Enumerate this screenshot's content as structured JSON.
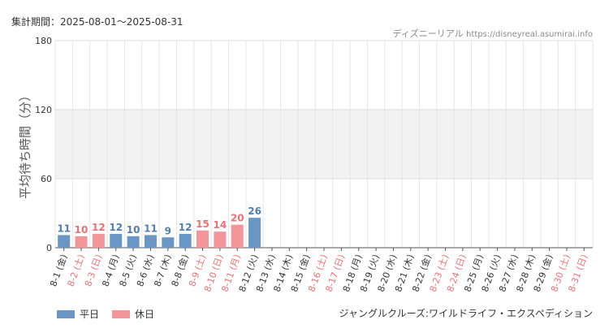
{
  "header": {
    "period": "集計期間：2025-08-01〜2025-08-31",
    "source_name": "ディズニーリアル",
    "source_url": "https://disneyreal.asumirai.info"
  },
  "attraction": "ジャングルクルーズ:ワイルドライフ・エクスペディション",
  "legend": [
    {
      "label": "平日",
      "color": "#6a96c5"
    },
    {
      "label": "休日",
      "color": "#f4959a"
    }
  ],
  "chart_data": {
    "type": "bar",
    "ylabel": "平均待ち時間（分）",
    "ylim": [
      0,
      180
    ],
    "yticks": [
      0,
      60,
      120,
      180
    ],
    "grid": true,
    "legend_position": "bottom-left",
    "shaded_band": [
      60,
      120
    ],
    "colors": {
      "weekday": "#6a96c5",
      "holiday": "#f4959a",
      "weekday_label": "#4f7fb3",
      "holiday_label": "#ee6f74"
    },
    "categories": [
      "8-1 (金)",
      "8-2 (土)",
      "8-3 (日)",
      "8-4 (月)",
      "8-5 (火)",
      "8-6 (水)",
      "8-7 (木)",
      "8-8 (金)",
      "8-9 (土)",
      "8-10 (日)",
      "8-11 (月)",
      "8-12 (火)",
      "8-13 (水)",
      "8-14 (木)",
      "8-15 (金)",
      "8-16 (土)",
      "8-17 (日)",
      "8-18 (月)",
      "8-19 (火)",
      "8-20 (水)",
      "8-21 (木)",
      "8-22 (金)",
      "8-23 (土)",
      "8-24 (日)",
      "8-25 (月)",
      "8-26 (火)",
      "8-27 (水)",
      "8-28 (木)",
      "8-29 (金)",
      "8-30 (土)",
      "8-31 (日)"
    ],
    "holiday": [
      false,
      true,
      true,
      false,
      false,
      false,
      false,
      false,
      true,
      true,
      true,
      false,
      false,
      false,
      false,
      true,
      true,
      false,
      false,
      false,
      false,
      false,
      true,
      true,
      false,
      false,
      false,
      false,
      false,
      true,
      true
    ],
    "values": [
      11,
      10,
      12,
      12,
      10,
      11,
      9,
      12,
      15,
      14,
      20,
      26,
      null,
      null,
      null,
      null,
      null,
      null,
      null,
      null,
      null,
      null,
      null,
      null,
      null,
      null,
      null,
      null,
      null,
      null,
      null
    ]
  }
}
